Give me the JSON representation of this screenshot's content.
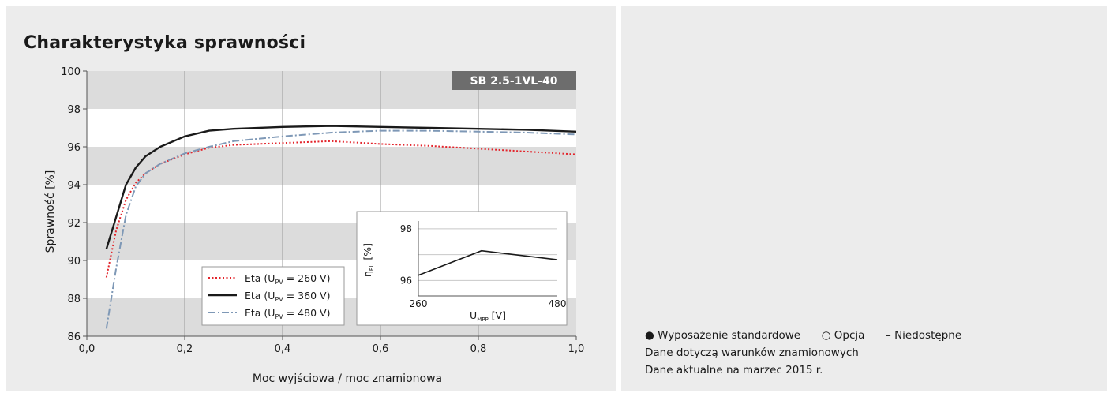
{
  "title": "Charakterystyka sprawności",
  "chart_data": {
    "type": "line",
    "badge": "SB 2.5-1VL-40",
    "xlabel": "Moc wyjściowa / moc znamionowa",
    "ylabel": "Sprawność [%]",
    "xlim": [
      0.0,
      1.0
    ],
    "ylim": [
      86,
      100
    ],
    "x_ticks": [
      "0,0",
      "0,2",
      "0,4",
      "0,6",
      "0,8",
      "1,0"
    ],
    "y_ticks": [
      "86",
      "88",
      "90",
      "92",
      "94",
      "96",
      "98",
      "100"
    ],
    "bands": [
      [
        86,
        88
      ],
      [
        90,
        92
      ],
      [
        94,
        96
      ],
      [
        98,
        100
      ]
    ],
    "series": [
      {
        "name": "Eta (U",
        "sub": "PV",
        "suffix": " = 260 V)",
        "color": "#e3242b",
        "style": "dotted",
        "x": [
          0.04,
          0.06,
          0.08,
          0.1,
          0.12,
          0.15,
          0.2,
          0.25,
          0.3,
          0.4,
          0.5,
          0.6,
          0.7,
          0.8,
          0.9,
          1.0
        ],
        "y": [
          89.1,
          91.6,
          93.2,
          94.1,
          94.6,
          95.1,
          95.6,
          95.95,
          96.1,
          96.2,
          96.3,
          96.15,
          96.05,
          95.9,
          95.75,
          95.6
        ]
      },
      {
        "name": "Eta (U",
        "sub": "PV",
        "suffix": " = 360 V)",
        "color": "#1a1a1a",
        "style": "solid",
        "x": [
          0.04,
          0.06,
          0.08,
          0.1,
          0.12,
          0.15,
          0.2,
          0.25,
          0.3,
          0.4,
          0.5,
          0.6,
          0.7,
          0.8,
          0.9,
          1.0
        ],
        "y": [
          90.6,
          92.3,
          94.0,
          94.9,
          95.5,
          96.0,
          96.55,
          96.85,
          96.95,
          97.05,
          97.1,
          97.05,
          97.0,
          96.95,
          96.9,
          96.8
        ]
      },
      {
        "name": "Eta (U",
        "sub": "PV",
        "suffix": " = 480 V)",
        "color": "#7e98b6",
        "style": "dashdot",
        "x": [
          0.04,
          0.06,
          0.08,
          0.1,
          0.12,
          0.15,
          0.2,
          0.25,
          0.3,
          0.4,
          0.5,
          0.6,
          0.7,
          0.8,
          0.9,
          1.0
        ],
        "y": [
          86.4,
          89.6,
          92.4,
          93.9,
          94.6,
          95.1,
          95.65,
          96.0,
          96.3,
          96.55,
          96.75,
          96.85,
          96.85,
          96.8,
          96.75,
          96.65
        ]
      }
    ],
    "inset": {
      "type": "line",
      "xlabel_main": "U",
      "xlabel_sub": "MPP",
      "xlabel_unit": " [V]",
      "ylabel_main": "η",
      "ylabel_sub": "EU",
      "ylabel_unit": " [%]",
      "x_ticks": [
        "260",
        "480"
      ],
      "y_ticks": [
        "96",
        "98"
      ],
      "xlim": [
        260,
        480
      ],
      "ylim": [
        95.4,
        98.3
      ],
      "x": [
        260,
        360,
        480
      ],
      "y": [
        96.2,
        97.15,
        96.8
      ],
      "color": "#1a1a1a"
    }
  },
  "notes": {
    "standard": "Wyposażenie standardowe",
    "option": "Opcja",
    "unavailable": "Niedostępne",
    "line2": "Dane dotyczą warunków znamionowych",
    "line3": "Dane aktualne na marzec 2015 r."
  }
}
